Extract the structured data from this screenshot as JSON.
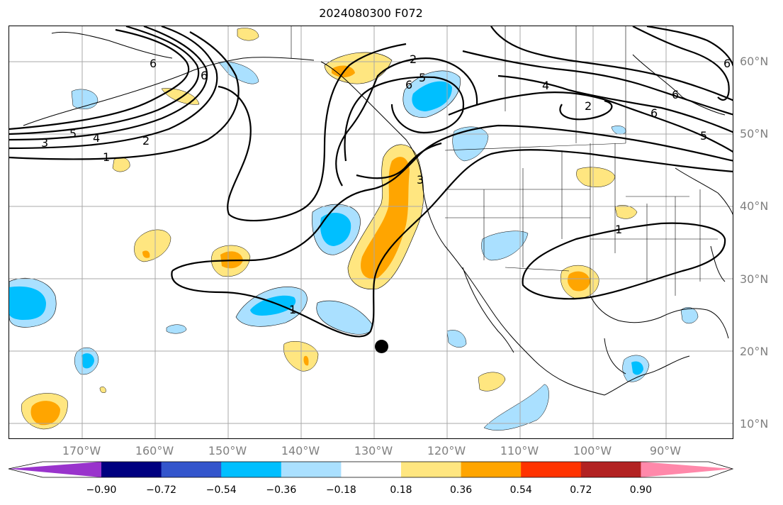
{
  "title": "2024080300 F072",
  "lat_labels": [
    "60°N",
    "50°N",
    "40°N",
    "30°N",
    "20°N",
    "10°N"
  ],
  "lon_labels": [
    "170°W",
    "160°W",
    "150°W",
    "140°W",
    "130°W",
    "120°W",
    "110°W",
    "100°W",
    "90°W"
  ],
  "contour_labels": [
    "6",
    "6",
    "5",
    "4",
    "3",
    "2",
    "1",
    "2",
    "5",
    "6",
    "3",
    "4",
    "6",
    "6",
    "5",
    "2",
    "1",
    "1",
    "6"
  ],
  "colorbar": {
    "ticks": [
      "−0.90",
      "−0.72",
      "−0.54",
      "−0.36",
      "−0.18",
      "0.18",
      "0.36",
      "0.54",
      "0.72",
      "0.90"
    ],
    "colors": [
      "#9933cc",
      "#000080",
      "#3355cc",
      "#00bfff",
      "#aae0ff",
      "#ffffff",
      "#ffe680",
      "#ffa500",
      "#ff3300",
      "#b22222",
      "#ff88aa"
    ]
  }
}
